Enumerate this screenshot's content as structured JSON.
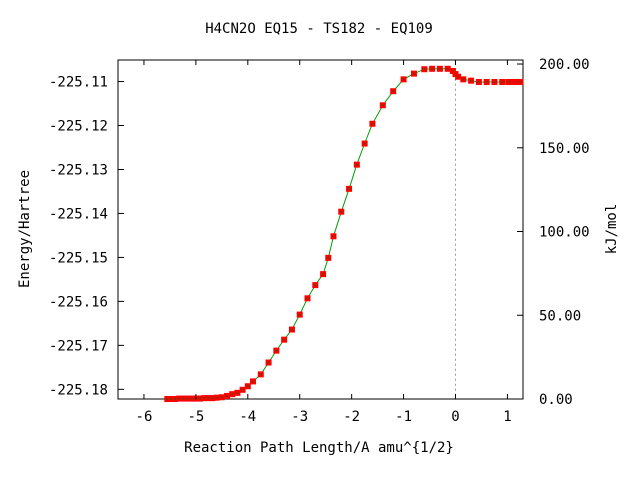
{
  "chart_data": {
    "type": "line",
    "title": "H4CN2O   EQ15 - TS182 - EQ109",
    "xlabel": "Reaction Path Length/A amu^{1/2}",
    "ylabel": "Energy/Hartree",
    "y2label": "kJ/mol",
    "xlim": [
      -6.5,
      1.3
    ],
    "ylim": [
      -225.1822,
      -225.1051
    ],
    "y2lim": [
      0,
      202.4
    ],
    "x_ticks": [
      "-6",
      "-5",
      "-4",
      "-3",
      "-2",
      "-1",
      "0",
      "1"
    ],
    "y_ticks": [
      "-225.11",
      "-225.12",
      "-225.13",
      "-225.14",
      "-225.15",
      "-225.16",
      "-225.17",
      "-225.18"
    ],
    "y2_ticks": [
      "200.00",
      "150.00",
      "100.00",
      "50.00",
      "0.00"
    ],
    "ts_x": 0.0,
    "grid": false,
    "colors": {
      "line": "#00a000",
      "marker": "#ff0000",
      "ts_line": "#999999",
      "axis": "#000000"
    },
    "series": [
      {
        "x": [
          -5.55,
          -5.48,
          -5.4,
          -5.32,
          -5.24,
          -5.16,
          -5.08,
          -5.0,
          -4.92,
          -4.84,
          -4.76,
          -4.68,
          -4.6,
          -4.5,
          -4.4,
          -4.3,
          -4.2,
          -4.1,
          -4.0,
          -3.9,
          -3.75,
          -3.6,
          -3.45,
          -3.3,
          -3.15,
          -3.0,
          -2.85,
          -2.7,
          -2.55,
          -2.45,
          -2.35,
          -2.2,
          -2.05,
          -1.9,
          -1.75,
          -1.6,
          -1.4,
          -1.2,
          -1.0,
          -0.8,
          -0.6,
          -0.45,
          -0.3,
          -0.15,
          -0.05,
          0.0,
          0.05,
          0.15,
          0.3,
          0.45,
          0.6,
          0.75,
          0.9,
          1.02,
          1.1,
          1.16,
          1.2,
          1.25
        ],
        "y": [
          -225.1822,
          -225.1822,
          -225.1822,
          -225.1821,
          -225.1821,
          -225.1821,
          -225.1821,
          -225.1821,
          -225.1821,
          -225.182,
          -225.182,
          -225.182,
          -225.1819,
          -225.1818,
          -225.1815,
          -225.1811,
          -225.1808,
          -225.1801,
          -225.1793,
          -225.1782,
          -225.1766,
          -225.1739,
          -225.1712,
          -225.1687,
          -225.1664,
          -225.163,
          -225.1593,
          -225.1563,
          -225.1538,
          -225.1501,
          -225.1452,
          -225.1396,
          -225.1344,
          -225.1289,
          -225.1241,
          -225.1196,
          -225.1154,
          -225.1122,
          -225.1095,
          -225.1082,
          -225.1072,
          -225.1071,
          -225.1071,
          -225.1071,
          -225.1076,
          -225.1083,
          -225.1089,
          -225.1095,
          -225.1098,
          -225.1101,
          -225.1101,
          -225.1101,
          -225.1101,
          -225.1101,
          -225.1101,
          -225.1101,
          -225.1101,
          -225.1101
        ]
      }
    ]
  }
}
